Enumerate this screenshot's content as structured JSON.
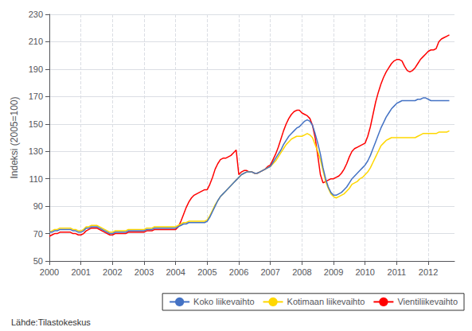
{
  "chart_data": {
    "type": "line",
    "ylabel": "Indeksi (2005=100)",
    "annotations": [
      "Lähde:Tilastokeskus"
    ],
    "legend": "lower right",
    "grid": true,
    "xlim": [
      2000,
      2012.83
    ],
    "xticks": [
      2000,
      2001,
      2002,
      2003,
      2004,
      2005,
      2006,
      2007,
      2008,
      2009,
      2010,
      2011,
      2012
    ],
    "ylim": [
      50,
      230
    ],
    "yticks": [
      50,
      70,
      90,
      110,
      130,
      150,
      170,
      190,
      210,
      230
    ],
    "x": [
      2000,
      2000.083333333333,
      2000.166666666667,
      2000.25,
      2000.333333333333,
      2000.416666666667,
      2000.5,
      2000.583333333333,
      2000.666666666667,
      2000.75,
      2000.833333333333,
      2000.916666666667,
      2001,
      2001.083333333333,
      2001.166666666667,
      2001.25,
      2001.333333333333,
      2001.416666666667,
      2001.5,
      2001.583333333333,
      2001.666666666667,
      2001.75,
      2001.833333333333,
      2001.916666666667,
      2002,
      2002.083333333333,
      2002.166666666667,
      2002.25,
      2002.333333333333,
      2002.416666666667,
      2002.5,
      2002.583333333333,
      2002.666666666667,
      2002.75,
      2002.833333333333,
      2002.916666666667,
      2003,
      2003.083333333333,
      2003.166666666667,
      2003.25,
      2003.333333333333,
      2003.416666666667,
      2003.5,
      2003.583333333333,
      2003.666666666667,
      2003.75,
      2003.833333333333,
      2003.916666666667,
      2004,
      2004.083333333333,
      2004.166666666667,
      2004.25,
      2004.333333333333,
      2004.416666666667,
      2004.5,
      2004.583333333333,
      2004.666666666667,
      2004.75,
      2004.833333333333,
      2004.916666666667,
      2005,
      2005.083333333333,
      2005.166666666667,
      2005.25,
      2005.333333333333,
      2005.416666666667,
      2005.5,
      2005.583333333333,
      2005.666666666667,
      2005.75,
      2005.833333333333,
      2005.916666666667,
      2006,
      2006.083333333333,
      2006.166666666667,
      2006.25,
      2006.333333333333,
      2006.416666666667,
      2006.5,
      2006.583333333333,
      2006.666666666667,
      2006.75,
      2006.833333333333,
      2006.916666666667,
      2007,
      2007.083333333333,
      2007.166666666667,
      2007.25,
      2007.333333333333,
      2007.416666666667,
      2007.5,
      2007.583333333333,
      2007.666666666667,
      2007.75,
      2007.833333333333,
      2007.916666666667,
      2008,
      2008.083333333333,
      2008.166666666667,
      2008.25,
      2008.333333333333,
      2008.416666666667,
      2008.5,
      2008.583333333333,
      2008.666666666667,
      2008.75,
      2008.833333333333,
      2008.916666666667,
      2009,
      2009.083333333333,
      2009.166666666667,
      2009.25,
      2009.333333333333,
      2009.416666666667,
      2009.5,
      2009.583333333333,
      2009.666666666667,
      2009.75,
      2009.833333333333,
      2009.916666666667,
      2010,
      2010.083333333333,
      2010.166666666667,
      2010.25,
      2010.333333333333,
      2010.416666666667,
      2010.5,
      2010.583333333333,
      2010.666666666667,
      2010.75,
      2010.833333333333,
      2010.916666666667,
      2011,
      2011.083333333333,
      2011.166666666667,
      2011.25,
      2011.333333333333,
      2011.416666666667,
      2011.5,
      2011.583333333333,
      2011.666666666667,
      2011.75,
      2011.833333333333,
      2011.916666666667,
      2012,
      2012.083333333333,
      2012.166666666667,
      2012.25,
      2012.333333333333,
      2012.416666666667,
      2012.5,
      2012.583333333333,
      2012.666666666667
    ],
    "series": [
      {
        "name": "Koko liikevaihto",
        "color": "#4472C4",
        "values": [
          71,
          71,
          72,
          72,
          73,
          73,
          73,
          73,
          73,
          72,
          72,
          71,
          71,
          72,
          74,
          74,
          75,
          75,
          75,
          74,
          73,
          72,
          71,
          70,
          70,
          71,
          71,
          71,
          71,
          71,
          72,
          72,
          72,
          72,
          72,
          72,
          72,
          73,
          73,
          73,
          74,
          74,
          74,
          74,
          74,
          74,
          74,
          74,
          74,
          75,
          76,
          77,
          77,
          78,
          78,
          78,
          78,
          78,
          78,
          78,
          79,
          82,
          86,
          90,
          94,
          97,
          99,
          101,
          103,
          105,
          107,
          109,
          111,
          113,
          114,
          115,
          115,
          115,
          114,
          114,
          115,
          116,
          117,
          118,
          119,
          122,
          125,
          128,
          131,
          135,
          138,
          141,
          143,
          145,
          147,
          148,
          150,
          152,
          153,
          152,
          149,
          143,
          136,
          128,
          118,
          110,
          104,
          100,
          98,
          98,
          99,
          100,
          102,
          104,
          107,
          110,
          112,
          114,
          116,
          118,
          120,
          123,
          127,
          132,
          137,
          142,
          147,
          151,
          155,
          158,
          161,
          163,
          165,
          166,
          167,
          167,
          167,
          167,
          167,
          167,
          168,
          168,
          169,
          169,
          168,
          167,
          167,
          167,
          167,
          167,
          167,
          167,
          167
        ]
      },
      {
        "name": "Kotimaan liikevaihto",
        "color": "#FFD700",
        "values": [
          71,
          72,
          73,
          73,
          74,
          74,
          74,
          74,
          74,
          73,
          73,
          72,
          72,
          73,
          75,
          75,
          76,
          76,
          76,
          75,
          74,
          73,
          72,
          71,
          71,
          72,
          72,
          72,
          72,
          72,
          73,
          73,
          73,
          73,
          73,
          73,
          73,
          74,
          74,
          74,
          75,
          75,
          75,
          75,
          75,
          75,
          75,
          75,
          75,
          76,
          77,
          78,
          78,
          79,
          79,
          79,
          79,
          79,
          79,
          79,
          80,
          83,
          87,
          91,
          94,
          97,
          99,
          101,
          103,
          105,
          107,
          109,
          111,
          113,
          114,
          115,
          115,
          115,
          114,
          114,
          115,
          116,
          117,
          118,
          119,
          121,
          123,
          126,
          129,
          132,
          135,
          137,
          139,
          140,
          141,
          141,
          141,
          142,
          143,
          142,
          140,
          135,
          130,
          124,
          116,
          108,
          103,
          99,
          97,
          96,
          97,
          98,
          99,
          101,
          103,
          106,
          107,
          108,
          110,
          111,
          113,
          115,
          118,
          122,
          126,
          130,
          134,
          136,
          138,
          139,
          140,
          140,
          140,
          140,
          140,
          140,
          140,
          140,
          140,
          140,
          141,
          142,
          143,
          143,
          143,
          143,
          143,
          143,
          144,
          144,
          144,
          144,
          145
        ]
      },
      {
        "name": "Vientiliikevaihto",
        "color": "#FF0000",
        "values": [
          68,
          69,
          70,
          70,
          71,
          71,
          71,
          71,
          71,
          70,
          70,
          69,
          69,
          70,
          72,
          73,
          74,
          74,
          74,
          73,
          72,
          71,
          70,
          69,
          69,
          70,
          70,
          70,
          70,
          70,
          71,
          71,
          71,
          71,
          71,
          71,
          71,
          72,
          72,
          72,
          73,
          73,
          73,
          73,
          73,
          73,
          73,
          73,
          73,
          75,
          79,
          84,
          89,
          93,
          96,
          98,
          99,
          100,
          101,
          102,
          102,
          106,
          111,
          117,
          121,
          124,
          125,
          125,
          126,
          127,
          129,
          131,
          113,
          115,
          116,
          116,
          115,
          115,
          114,
          114,
          115,
          116,
          117,
          119,
          120,
          124,
          128,
          133,
          139,
          145,
          150,
          154,
          157,
          159,
          160,
          160,
          158,
          157,
          156,
          154,
          149,
          140,
          127,
          113,
          107,
          108,
          109,
          110,
          110,
          111,
          112,
          114,
          117,
          121,
          126,
          130,
          132,
          133,
          134,
          135,
          136,
          141,
          148,
          157,
          166,
          173,
          179,
          184,
          188,
          191,
          194,
          196,
          197,
          197,
          196,
          192,
          189,
          188,
          189,
          191,
          194,
          197,
          199,
          201,
          203,
          204,
          204,
          205,
          210,
          212,
          213,
          214,
          215
        ]
      }
    ]
  }
}
